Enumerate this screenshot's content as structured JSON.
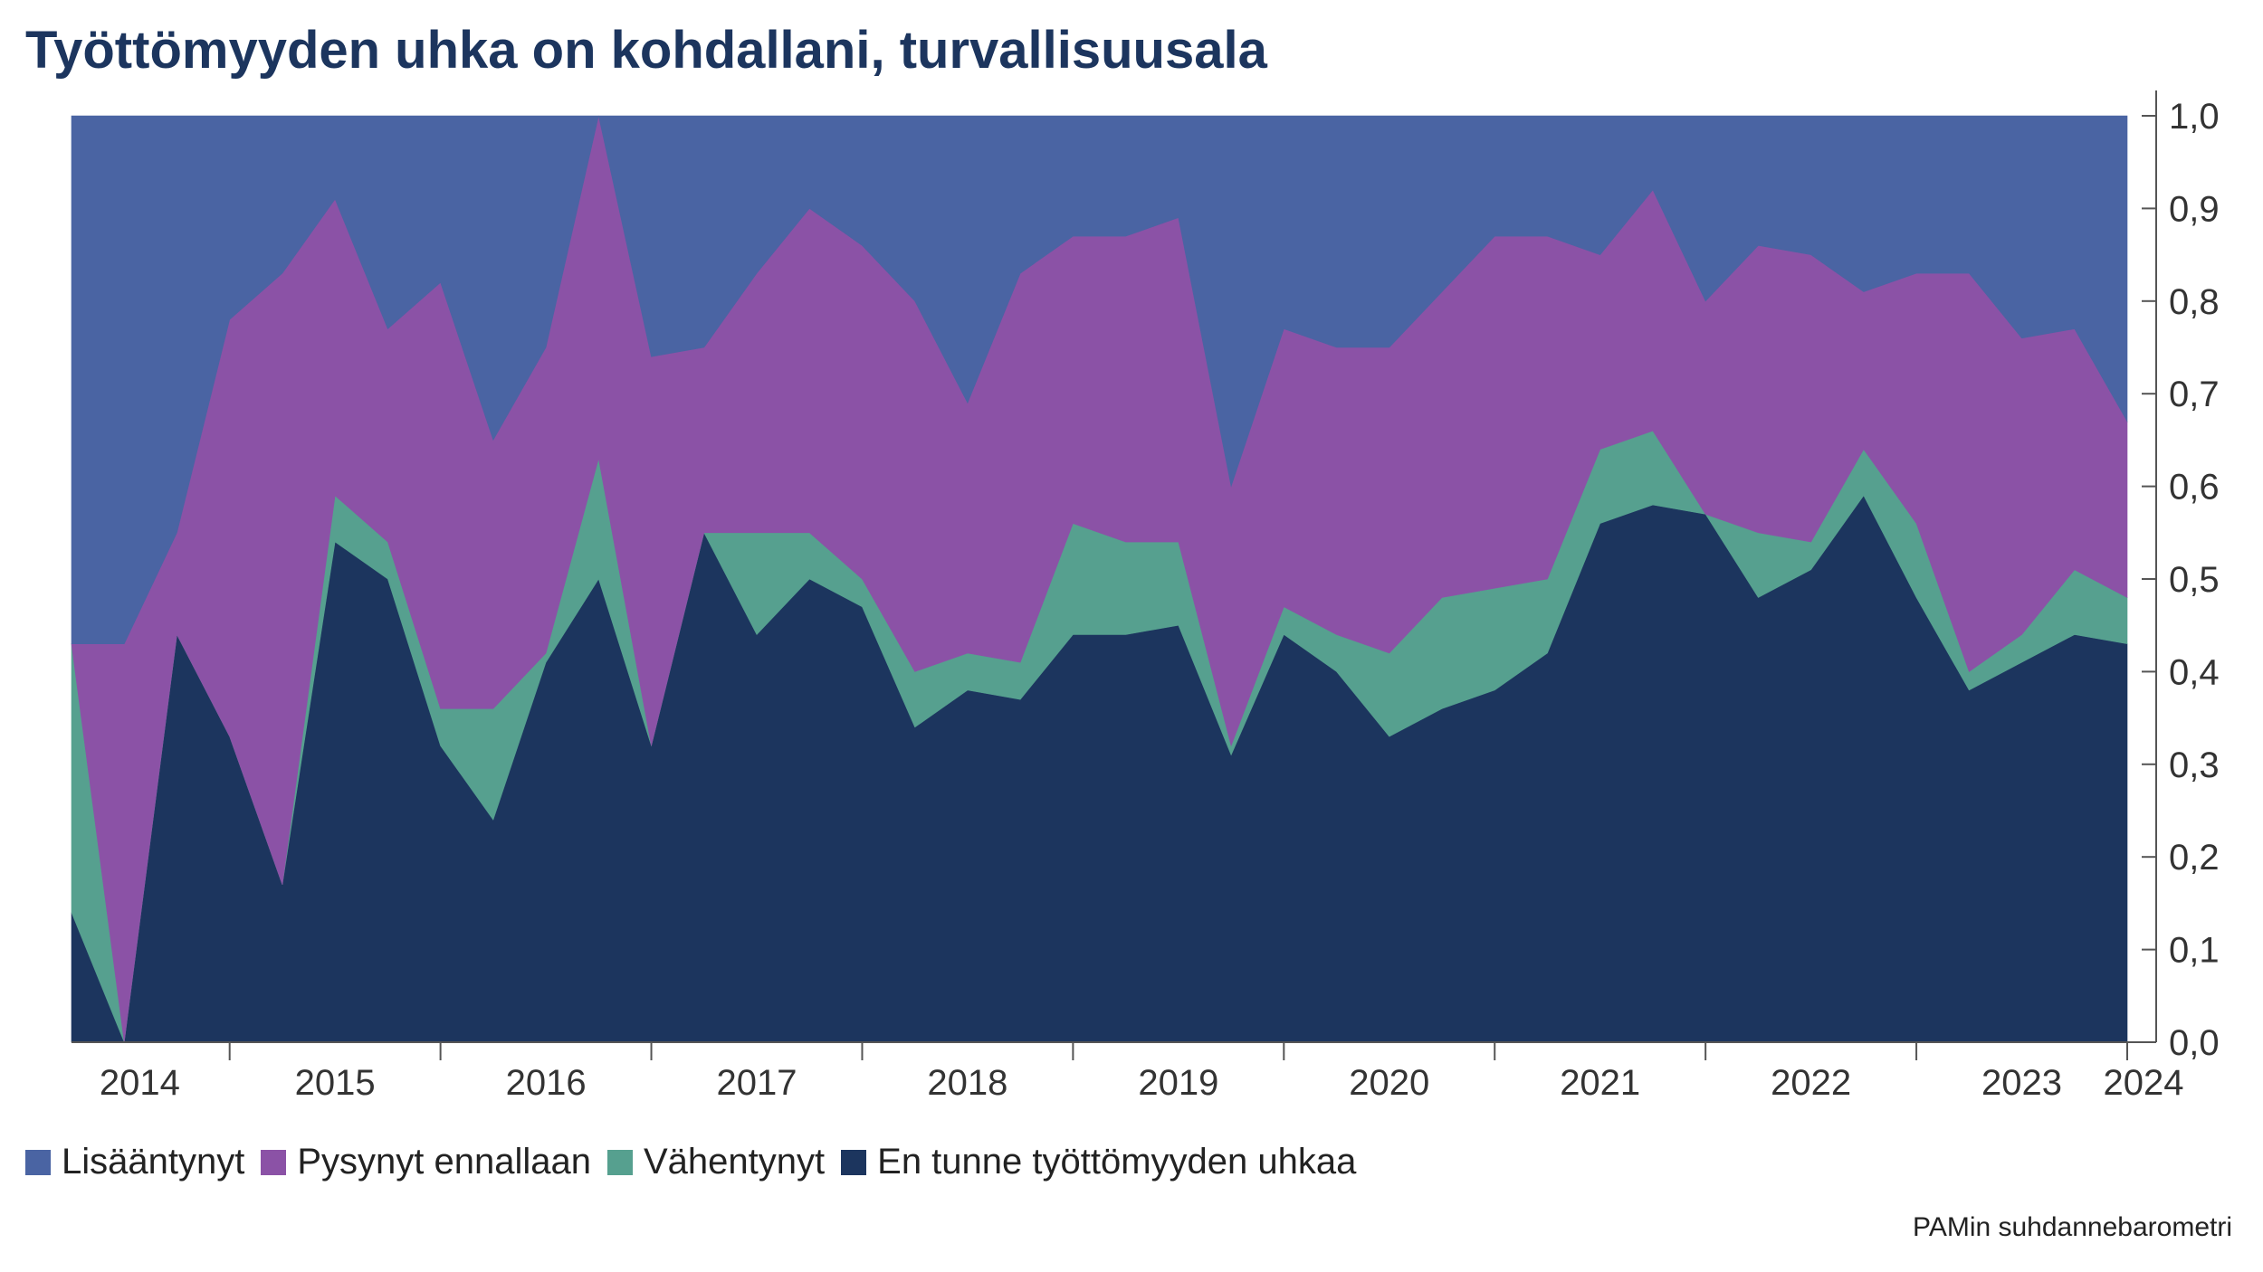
{
  "chart_data": {
    "type": "area",
    "stacked": true,
    "title": "Työttömyyden uhka on kohdallani, turvallisuusala",
    "source": "PAMin suhdannebarometri",
    "x_start": 2014.25,
    "x_step": 0.25,
    "year_labels": [
      "2014",
      "2015",
      "2016",
      "2017",
      "2018",
      "2019",
      "2020",
      "2021",
      "2022",
      "2023",
      "2024"
    ],
    "y_ticks": [
      "0,0",
      "0,1",
      "0,2",
      "0,3",
      "0,4",
      "0,5",
      "0,6",
      "0,7",
      "0,8",
      "0,9",
      "1,0"
    ],
    "ylim": [
      0,
      1
    ],
    "legend_placement": "bottom-left",
    "series": [
      {
        "name": "En tunne työttömyyden uhkaa",
        "color": "#1c355e",
        "values": [
          0.14,
          0.0,
          0.44,
          0.33,
          0.17,
          0.54,
          0.5,
          0.32,
          0.24,
          0.41,
          0.5,
          0.32,
          0.55,
          0.44,
          0.5,
          0.47,
          0.34,
          0.38,
          0.37,
          0.44,
          0.44,
          0.45,
          0.31,
          0.44,
          0.4,
          0.33,
          0.36,
          0.38,
          0.42,
          0.56,
          0.58,
          0.57,
          0.48,
          0.51,
          0.59,
          0.48,
          0.38,
          0.41,
          0.44,
          0.43
        ]
      },
      {
        "name": "Vähentynyt",
        "color": "#56a08f",
        "values": [
          0.29,
          0.0,
          0.0,
          0.0,
          0.0,
          0.05,
          0.04,
          0.04,
          0.12,
          0.01,
          0.13,
          0.0,
          0.0,
          0.11,
          0.05,
          0.03,
          0.06,
          0.04,
          0.04,
          0.12,
          0.1,
          0.09,
          0.01,
          0.03,
          0.04,
          0.09,
          0.12,
          0.11,
          0.08,
          0.08,
          0.08,
          0.0,
          0.07,
          0.03,
          0.05,
          0.08,
          0.02,
          0.03,
          0.07,
          0.05
        ]
      },
      {
        "name": "Pysynyt ennallaan",
        "color": "#8b52a6",
        "values": [
          0.0,
          0.43,
          0.11,
          0.45,
          0.66,
          0.32,
          0.23,
          0.46,
          0.29,
          0.33,
          0.37,
          0.42,
          0.2,
          0.28,
          0.35,
          0.36,
          0.4,
          0.27,
          0.42,
          0.31,
          0.33,
          0.35,
          0.28,
          0.3,
          0.31,
          0.33,
          0.33,
          0.38,
          0.37,
          0.21,
          0.26,
          0.23,
          0.31,
          0.31,
          0.17,
          0.27,
          0.43,
          0.32,
          0.26,
          0.19
        ]
      },
      {
        "name": "Lisääntynyt",
        "color": "#4a64a3",
        "values": [
          0.57,
          0.57,
          0.45,
          0.22,
          0.17,
          0.09,
          0.23,
          0.18,
          0.35,
          0.25,
          0.0,
          0.26,
          0.25,
          0.17,
          0.1,
          0.14,
          0.2,
          0.31,
          0.17,
          0.13,
          0.13,
          0.11,
          0.4,
          0.23,
          0.25,
          0.25,
          0.19,
          0.13,
          0.13,
          0.15,
          0.08,
          0.2,
          0.14,
          0.15,
          0.19,
          0.17,
          0.17,
          0.24,
          0.23,
          0.33
        ]
      }
    ]
  },
  "legend": [
    {
      "label": "Lisääntynyt",
      "color": "#4a64a3"
    },
    {
      "label": "Pysynyt ennallaan",
      "color": "#8b52a6"
    },
    {
      "label": "Vähentynyt",
      "color": "#56a08f"
    },
    {
      "label": "En tunne työttömyyden uhkaa",
      "color": "#1c355e"
    }
  ]
}
